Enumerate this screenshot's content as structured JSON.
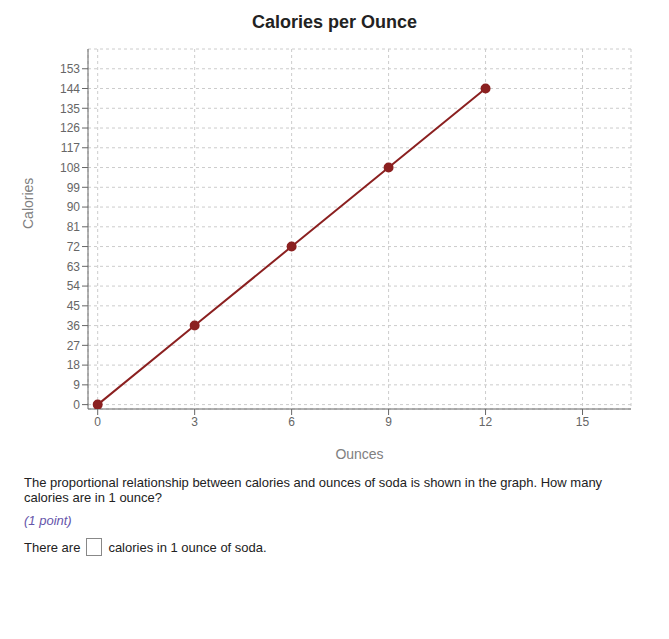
{
  "chart_data": {
    "type": "line",
    "title": "Calories per Ounce",
    "xlabel": "Ounces",
    "ylabel": "Calories",
    "x": [
      0,
      3,
      6,
      9,
      12
    ],
    "values": [
      0,
      36,
      72,
      108,
      144
    ],
    "color": "#8B2020",
    "marker": "circle",
    "xlim": [
      -0.3,
      16.5
    ],
    "ylim": [
      -2,
      162
    ],
    "xticks": [
      0,
      3,
      6,
      9,
      12,
      15
    ],
    "yticks": [
      0,
      9,
      18,
      27,
      36,
      45,
      54,
      63,
      72,
      81,
      90,
      99,
      108,
      117,
      126,
      135,
      144,
      153
    ],
    "grid": true,
    "annotations": [
      "The proportional relationship between calories and ounces of soda is shown in the graph. How many calories are in 1 ounce?",
      "(1 point)",
      "There are",
      "calories in 1 ounce of soda."
    ]
  }
}
